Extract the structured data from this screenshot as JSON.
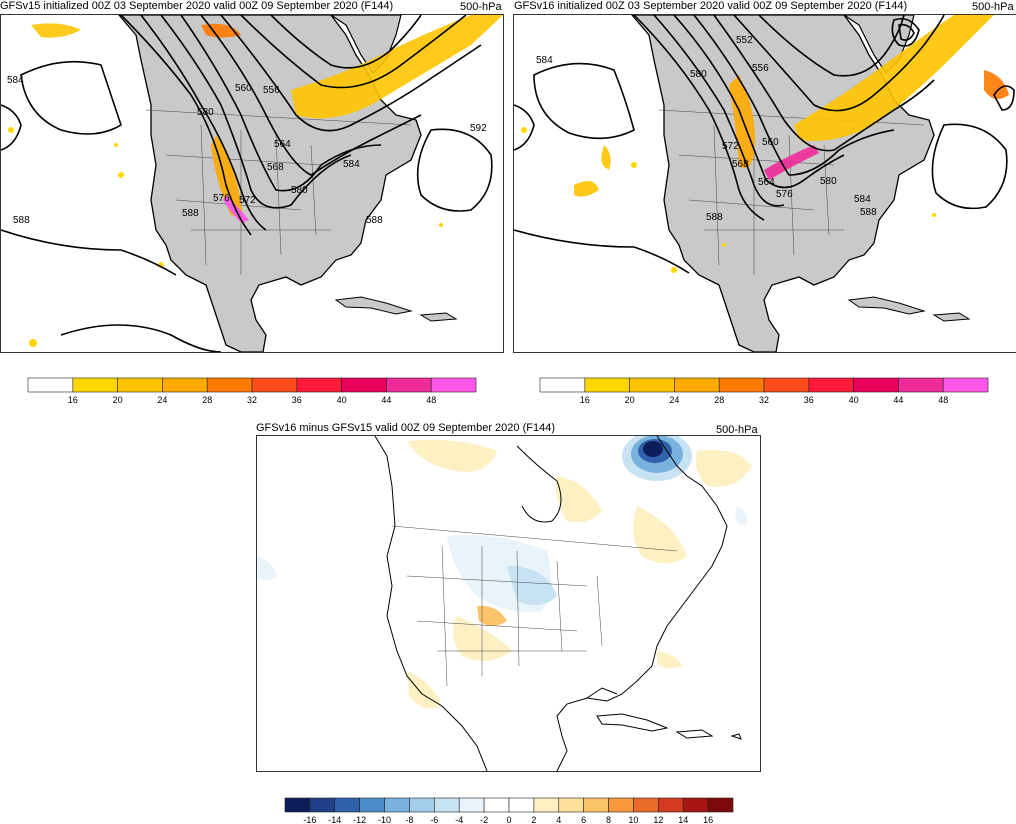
{
  "panels": {
    "v15": {
      "title": "GFSv15 initialized 00Z 03 September 2020 valid 00Z 09 September 2020 (F144)",
      "level": "500-hPa",
      "contour_labels": [
        "584",
        "588",
        "580",
        "560",
        "556",
        "564",
        "568",
        "576",
        "572",
        "580",
        "584",
        "588",
        "588",
        "592"
      ]
    },
    "v16": {
      "title": "GFSv16 initialized 00Z 03 September 2020 valid 00Z 09 September 2020 (F144)",
      "level": "500-hPa",
      "contour_labels": [
        "584",
        "552",
        "556",
        "580",
        "572",
        "560",
        "568",
        "564",
        "576",
        "580",
        "584",
        "588",
        "588"
      ]
    },
    "diff": {
      "title": "GFSv16 minus GFSv15 valid 00Z 09 September 2020 (F144)",
      "level": "500-hPa"
    }
  },
  "wind_colorbar": {
    "ticks": [
      "16",
      "20",
      "24",
      "28",
      "32",
      "36",
      "40",
      "44",
      "48"
    ],
    "colors": [
      "#ffffff",
      "#ffd700",
      "#ffc400",
      "#ffaa00",
      "#ff7a00",
      "#ff4a1a",
      "#ff1a3a",
      "#e8005a",
      "#ef2a9a",
      "#ff55e8"
    ]
  },
  "diff_colorbar": {
    "ticks": [
      "-16",
      "-14",
      "-12",
      "-10",
      "-8",
      "-6",
      "-4",
      "-2",
      "0",
      "2",
      "4",
      "6",
      "8",
      "10",
      "12",
      "14",
      "16"
    ],
    "colors": [
      "#0c1f5a",
      "#1f3f86",
      "#2f62aa",
      "#4f8ccb",
      "#79b2de",
      "#a3cdea",
      "#c7e2f2",
      "#e8f3fa",
      "#ffffff",
      "#ffffff",
      "#fdf0c2",
      "#fde19a",
      "#fbc46a",
      "#f79a3e",
      "#ea6a2a",
      "#d33a1e",
      "#a81515",
      "#7d0a0a"
    ]
  }
}
